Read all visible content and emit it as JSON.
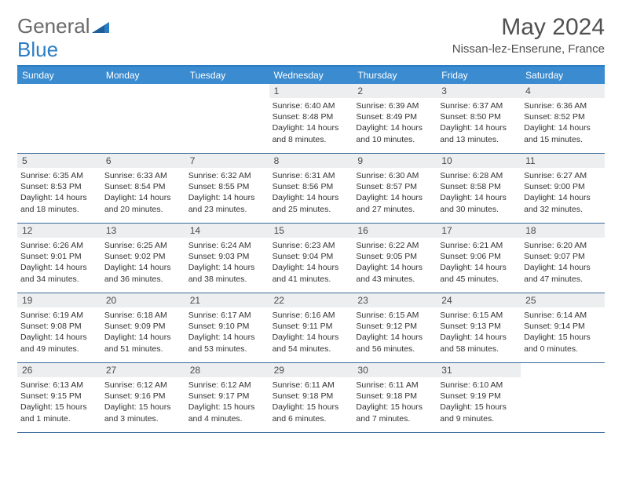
{
  "brand": {
    "part1": "General",
    "part2": "Blue"
  },
  "month_title": "May 2024",
  "location": "Nissan-lez-Enserune, France",
  "colors": {
    "header_bar": "#3a8bcf",
    "accent_line": "#2a7dc4",
    "daynum_bg": "#eceef0",
    "week_border": "#3a6a9a",
    "text": "#333333"
  },
  "days_of_week": [
    "Sunday",
    "Monday",
    "Tuesday",
    "Wednesday",
    "Thursday",
    "Friday",
    "Saturday"
  ],
  "weeks": [
    [
      {
        "n": "",
        "empty": true
      },
      {
        "n": "",
        "empty": true
      },
      {
        "n": "",
        "empty": true
      },
      {
        "n": "1",
        "sunrise": "6:40 AM",
        "sunset": "8:48 PM",
        "daylight": "14 hours and 8 minutes."
      },
      {
        "n": "2",
        "sunrise": "6:39 AM",
        "sunset": "8:49 PM",
        "daylight": "14 hours and 10 minutes."
      },
      {
        "n": "3",
        "sunrise": "6:37 AM",
        "sunset": "8:50 PM",
        "daylight": "14 hours and 13 minutes."
      },
      {
        "n": "4",
        "sunrise": "6:36 AM",
        "sunset": "8:52 PM",
        "daylight": "14 hours and 15 minutes."
      }
    ],
    [
      {
        "n": "5",
        "sunrise": "6:35 AM",
        "sunset": "8:53 PM",
        "daylight": "14 hours and 18 minutes."
      },
      {
        "n": "6",
        "sunrise": "6:33 AM",
        "sunset": "8:54 PM",
        "daylight": "14 hours and 20 minutes."
      },
      {
        "n": "7",
        "sunrise": "6:32 AM",
        "sunset": "8:55 PM",
        "daylight": "14 hours and 23 minutes."
      },
      {
        "n": "8",
        "sunrise": "6:31 AM",
        "sunset": "8:56 PM",
        "daylight": "14 hours and 25 minutes."
      },
      {
        "n": "9",
        "sunrise": "6:30 AM",
        "sunset": "8:57 PM",
        "daylight": "14 hours and 27 minutes."
      },
      {
        "n": "10",
        "sunrise": "6:28 AM",
        "sunset": "8:58 PM",
        "daylight": "14 hours and 30 minutes."
      },
      {
        "n": "11",
        "sunrise": "6:27 AM",
        "sunset": "9:00 PM",
        "daylight": "14 hours and 32 minutes."
      }
    ],
    [
      {
        "n": "12",
        "sunrise": "6:26 AM",
        "sunset": "9:01 PM",
        "daylight": "14 hours and 34 minutes."
      },
      {
        "n": "13",
        "sunrise": "6:25 AM",
        "sunset": "9:02 PM",
        "daylight": "14 hours and 36 minutes."
      },
      {
        "n": "14",
        "sunrise": "6:24 AM",
        "sunset": "9:03 PM",
        "daylight": "14 hours and 38 minutes."
      },
      {
        "n": "15",
        "sunrise": "6:23 AM",
        "sunset": "9:04 PM",
        "daylight": "14 hours and 41 minutes."
      },
      {
        "n": "16",
        "sunrise": "6:22 AM",
        "sunset": "9:05 PM",
        "daylight": "14 hours and 43 minutes."
      },
      {
        "n": "17",
        "sunrise": "6:21 AM",
        "sunset": "9:06 PM",
        "daylight": "14 hours and 45 minutes."
      },
      {
        "n": "18",
        "sunrise": "6:20 AM",
        "sunset": "9:07 PM",
        "daylight": "14 hours and 47 minutes."
      }
    ],
    [
      {
        "n": "19",
        "sunrise": "6:19 AM",
        "sunset": "9:08 PM",
        "daylight": "14 hours and 49 minutes."
      },
      {
        "n": "20",
        "sunrise": "6:18 AM",
        "sunset": "9:09 PM",
        "daylight": "14 hours and 51 minutes."
      },
      {
        "n": "21",
        "sunrise": "6:17 AM",
        "sunset": "9:10 PM",
        "daylight": "14 hours and 53 minutes."
      },
      {
        "n": "22",
        "sunrise": "6:16 AM",
        "sunset": "9:11 PM",
        "daylight": "14 hours and 54 minutes."
      },
      {
        "n": "23",
        "sunrise": "6:15 AM",
        "sunset": "9:12 PM",
        "daylight": "14 hours and 56 minutes."
      },
      {
        "n": "24",
        "sunrise": "6:15 AM",
        "sunset": "9:13 PM",
        "daylight": "14 hours and 58 minutes."
      },
      {
        "n": "25",
        "sunrise": "6:14 AM",
        "sunset": "9:14 PM",
        "daylight": "15 hours and 0 minutes."
      }
    ],
    [
      {
        "n": "26",
        "sunrise": "6:13 AM",
        "sunset": "9:15 PM",
        "daylight": "15 hours and 1 minute."
      },
      {
        "n": "27",
        "sunrise": "6:12 AM",
        "sunset": "9:16 PM",
        "daylight": "15 hours and 3 minutes."
      },
      {
        "n": "28",
        "sunrise": "6:12 AM",
        "sunset": "9:17 PM",
        "daylight": "15 hours and 4 minutes."
      },
      {
        "n": "29",
        "sunrise": "6:11 AM",
        "sunset": "9:18 PM",
        "daylight": "15 hours and 6 minutes."
      },
      {
        "n": "30",
        "sunrise": "6:11 AM",
        "sunset": "9:18 PM",
        "daylight": "15 hours and 7 minutes."
      },
      {
        "n": "31",
        "sunrise": "6:10 AM",
        "sunset": "9:19 PM",
        "daylight": "15 hours and 9 minutes."
      },
      {
        "n": "",
        "empty": true
      }
    ]
  ],
  "labels": {
    "sunrise": "Sunrise: ",
    "sunset": "Sunset: ",
    "daylight": "Daylight: "
  }
}
